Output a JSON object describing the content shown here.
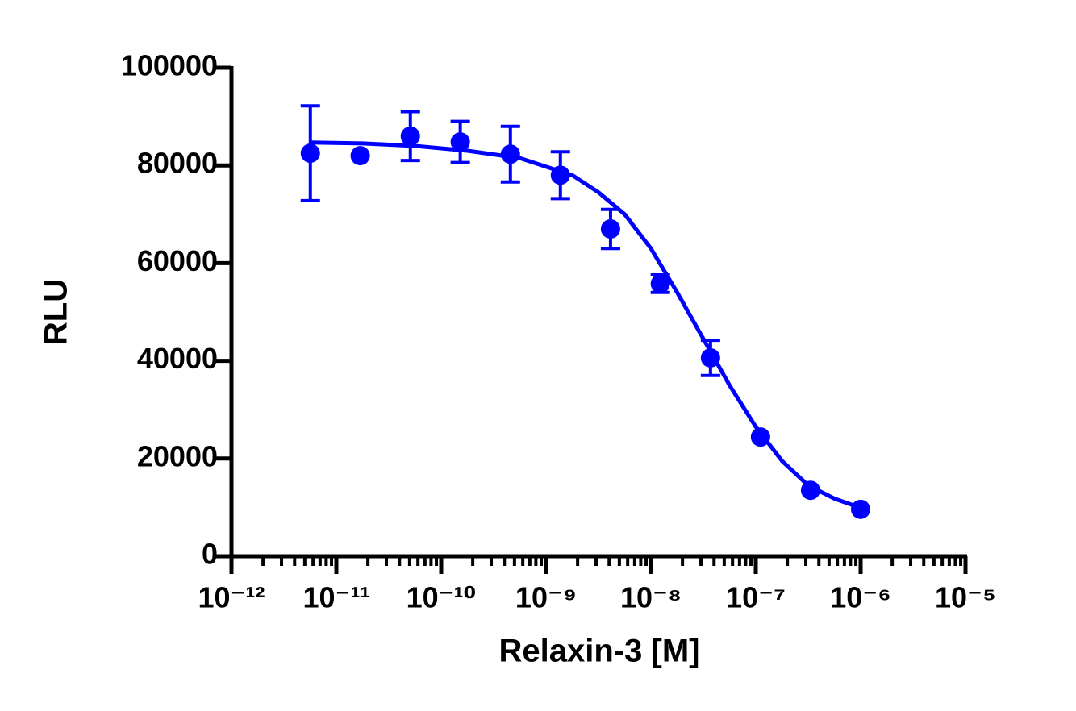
{
  "chart_data": {
    "type": "scatter",
    "x_label": "Relaxin-3 [M]",
    "y_label": "RLU",
    "log_x": true,
    "color": "#0000ff",
    "xlim": [
      1e-12,
      1e-05
    ],
    "xticks": [
      {
        "value": 1e-12,
        "label": "10⁻¹²"
      },
      {
        "value": 1e-11,
        "label": "10⁻¹¹"
      },
      {
        "value": 1e-10,
        "label": "10⁻¹⁰"
      },
      {
        "value": 1e-09,
        "label": "10⁻⁹"
      },
      {
        "value": 1e-08,
        "label": "10⁻⁸"
      },
      {
        "value": 1e-07,
        "label": "10⁻⁷"
      },
      {
        "value": 1e-06,
        "label": "10⁻⁶"
      },
      {
        "value": 1e-05,
        "label": "10⁻⁵"
      }
    ],
    "xminorticks": [
      2e-12,
      3e-12,
      4e-12,
      5e-12,
      6e-12,
      7e-12,
      8e-12,
      9e-12,
      2e-11,
      3e-11,
      4e-11,
      5e-11,
      6e-11,
      7e-11,
      8e-11,
      9e-11,
      2e-10,
      3e-10,
      4e-10,
      5e-10,
      6e-10,
      7e-10,
      8e-10,
      9e-10,
      2e-09,
      3e-09,
      4e-09,
      5e-09,
      6e-09,
      7e-09,
      8e-09,
      9e-09,
      2e-08,
      3e-08,
      4e-08,
      5e-08,
      6e-08,
      7e-08,
      8e-08,
      9e-08,
      2e-07,
      3e-07,
      4e-07,
      5e-07,
      6e-07,
      7e-07,
      8e-07,
      9e-07,
      2e-06,
      3e-06,
      4e-06,
      5e-06,
      6e-06,
      7e-06,
      8e-06,
      9e-06
    ],
    "ylim": [
      0,
      100000
    ],
    "yticks": [
      0,
      20000,
      40000,
      60000,
      80000,
      100000
    ],
    "points": {
      "x": [
        5.65e-12,
        1.69e-11,
        5.08e-11,
        1.52e-10,
        4.57e-10,
        1.37e-09,
        4.12e-09,
        1.23e-08,
        3.7e-08,
        1.11e-07,
        3.33e-07,
        1e-06
      ],
      "values": [
        82500,
        82000,
        86000,
        84800,
        82300,
        78000,
        67000,
        55800,
        40600,
        24400,
        13500,
        9600
      ],
      "errors": [
        9700,
        0,
        5000,
        4200,
        5700,
        4800,
        4000,
        1800,
        3600,
        0,
        0,
        0
      ]
    },
    "fit": {
      "x": [
        5.62e-12,
        1.78e-11,
        5.62e-11,
        1.78e-10,
        5.62e-10,
        1.78e-09,
        3.16e-09,
        5.62e-09,
        1e-08,
        1.78e-08,
        3.16e-08,
        5.62e-08,
        1e-07,
        1.78e-07,
        3.16e-07,
        5.62e-07,
        1e-06
      ],
      "values": [
        84700,
        84500,
        84000,
        83000,
        81500,
        78000,
        74500,
        70000,
        63000,
        54000,
        44500,
        35000,
        26500,
        19500,
        14500,
        11800,
        9900
      ]
    }
  }
}
